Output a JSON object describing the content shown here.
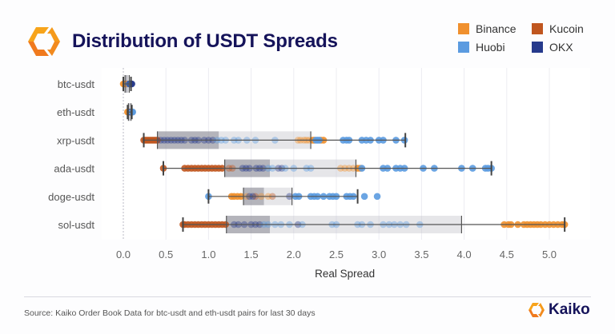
{
  "header": {
    "title": "Distribution of USDT Spreads",
    "logo_icon": "kaiko-hexagon-logo-icon"
  },
  "legend": {
    "items": [
      {
        "label": "Binance",
        "color": "#f0902e"
      },
      {
        "label": "Kucoin",
        "color": "#c0561f"
      },
      {
        "label": "Huobi",
        "color": "#5b9be0"
      },
      {
        "label": "OKX",
        "color": "#263a8c"
      }
    ]
  },
  "chart_data": {
    "type": "boxplot",
    "title": "Distribution of USDT Spreads",
    "xlabel": "Real Spread",
    "ylabel": "",
    "xlim": [
      -0.1,
      5.25
    ],
    "xticks": [
      "0.0",
      "0.5",
      "1.0",
      "1.5",
      "2.0",
      "2.5",
      "3.0",
      "3.5",
      "4.0",
      "4.5",
      "5.0"
    ],
    "xtick_values": [
      0,
      0.5,
      1,
      1.5,
      2,
      2.5,
      3,
      3.5,
      4,
      4.5,
      5
    ],
    "grid": true,
    "legend_position": "top-right",
    "categories": [
      "btc-usdt",
      "eth-usdt",
      "xrp-usdt",
      "ada-usdt",
      "doge-usdt",
      "sol-usdt"
    ],
    "boxes": [
      {
        "name": "btc-usdt",
        "whisker_low": 0.0,
        "q1": 0.02,
        "median": 0.05,
        "q3": 0.07,
        "whisker_high": 0.09
      },
      {
        "name": "eth-usdt",
        "whisker_low": 0.05,
        "q1": 0.06,
        "median": 0.075,
        "q3": 0.09,
        "whisker_high": 0.1
      },
      {
        "name": "xrp-usdt",
        "whisker_low": 0.24,
        "q1": 0.4,
        "median": 1.12,
        "q3": 2.2,
        "whisker_high": 3.31
      },
      {
        "name": "ada-usdt",
        "whisker_low": 0.47,
        "q1": 1.19,
        "median": 1.72,
        "q3": 2.73,
        "whisker_high": 4.32
      },
      {
        "name": "doge-usdt",
        "whisker_low": 1.0,
        "q1": 1.41,
        "median": 1.65,
        "q3": 1.98,
        "whisker_high": 2.75
      },
      {
        "name": "sol-usdt",
        "whisker_low": 0.7,
        "q1": 1.21,
        "median": 1.72,
        "q3": 3.97,
        "whisker_high": 5.18
      }
    ],
    "points": {
      "btc-usdt": {
        "Binance": [
          0.0,
          0.01,
          0.02
        ],
        "Kucoin": [
          0.03,
          0.04
        ],
        "Huobi": [
          0.06
        ],
        "OKX": [
          0.07,
          0.08,
          0.09,
          0.1
        ]
      },
      "eth-usdt": {
        "Binance": [
          0.05,
          0.06
        ],
        "Kucoin": [
          0.07
        ],
        "Huobi": [
          0.1,
          0.11
        ],
        "OKX": [
          0.08,
          0.09
        ]
      },
      "xrp-usdt": {
        "Kucoin": [
          0.24,
          0.26,
          0.28,
          0.3,
          0.32,
          0.34,
          0.36,
          0.38,
          0.4
        ],
        "OKX": [
          0.44,
          0.48,
          0.52,
          0.56,
          0.6,
          0.64,
          0.68,
          0.72,
          0.8,
          0.84,
          0.88,
          0.95,
          1.0,
          1.05
        ],
        "Huobi": [
          1.1,
          1.15,
          1.2,
          1.3,
          1.35,
          1.45,
          1.55,
          1.78,
          2.26,
          2.28,
          2.3,
          2.58,
          2.62,
          2.65,
          2.8,
          2.85,
          2.9,
          3.0,
          3.05,
          3.2,
          3.3
        ],
        "Binance": [
          2.05,
          2.08,
          2.12,
          2.15,
          2.18,
          2.22,
          2.24,
          2.32,
          2.35
        ]
      },
      "ada-usdt": {
        "Kucoin": [
          0.47,
          0.72,
          0.76,
          0.8,
          0.84,
          0.88,
          0.92,
          0.96,
          1.0,
          1.04,
          1.08,
          1.12,
          1.16,
          1.24,
          1.28
        ],
        "OKX": [
          1.4,
          1.44,
          1.48,
          1.56,
          1.6,
          1.64,
          1.82,
          1.86
        ],
        "Huobi": [
          1.7,
          1.75,
          1.9,
          2.0,
          2.15,
          2.2,
          2.8,
          3.05,
          3.1,
          3.2,
          3.25,
          3.3,
          3.52,
          3.65,
          3.97,
          4.1,
          4.25,
          4.28,
          4.32
        ],
        "Binance": [
          2.55,
          2.6,
          2.65,
          2.7,
          2.75,
          2.78
        ]
      },
      "doge-usdt": {
        "Huobi": [
          1.0,
          2.02,
          2.06,
          2.2,
          2.24,
          2.28,
          2.35,
          2.42,
          2.46,
          2.5,
          2.62,
          2.66,
          2.7,
          2.83,
          2.98
        ],
        "Binance": [
          1.27,
          1.3,
          1.34,
          1.38,
          1.45,
          1.62,
          1.7
        ],
        "Kucoin": [
          1.55,
          1.75
        ],
        "OKX": [
          1.48,
          1.52,
          1.95
        ]
      },
      "sol-usdt": {
        "Kucoin": [
          0.7,
          0.72,
          0.76,
          0.8,
          0.84,
          0.88,
          0.92,
          0.96,
          1.0,
          1.04,
          1.08,
          1.12,
          1.16,
          1.2
        ],
        "OKX": [
          1.3,
          1.35,
          1.42,
          1.5,
          1.55,
          1.6,
          2.05
        ],
        "Huobi": [
          1.65,
          1.7,
          1.78,
          1.85,
          1.95,
          2.1,
          2.45,
          2.5,
          2.75,
          2.8,
          2.9,
          3.05,
          3.12,
          3.18,
          3.25,
          3.32,
          3.48
        ],
        "Binance": [
          4.47,
          4.52,
          4.55,
          4.63,
          4.7,
          4.74,
          4.78,
          4.82,
          4.86,
          4.9,
          4.95,
          5.0,
          5.05,
          5.1,
          5.15,
          5.18
        ]
      }
    }
  },
  "footer": {
    "source": "Source: Kaiko Order Book Data for btc-usdt and eth-usdt pairs for last 30 days",
    "brand": "Kaiko"
  }
}
